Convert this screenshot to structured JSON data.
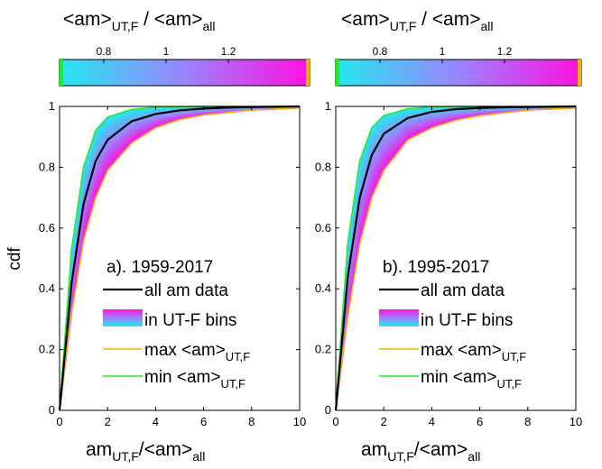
{
  "figure": {
    "cdf_label": "cdf",
    "colorbar_label_main": "<am>",
    "colorbar_label_sub": "UT,F",
    "colorbar_label_mid": " / <am>",
    "colorbar_label_sub2": "all",
    "colorbar_ticks": [
      "0.8",
      "1",
      "1.2"
    ],
    "xlabel_main": "am",
    "xlabel_sub": "UT,F",
    "xlabel_mid": "/<am>",
    "xlabel_sub2": "all"
  },
  "legend": {
    "all": "all am data",
    "bins": "in UT-F bins",
    "max_main": "max <am>",
    "max_sub": "UT,F",
    "min_main": "min <am>",
    "min_sub": "UT,F"
  },
  "colors": {
    "all": "#000000",
    "max": "#f7b500",
    "min": "#22ee22",
    "bins_low": "#22e8f0",
    "bins_mid": "#9a84ff",
    "bins_high": "#ff10e0"
  },
  "chart_data": [
    {
      "type": "line",
      "panel_label": "a). 1959-2017",
      "xlim": [
        0,
        10
      ],
      "ylim": [
        0,
        1
      ],
      "xticks": [
        "0",
        "2",
        "4",
        "6",
        "8",
        "10"
      ],
      "yticks": [
        "0",
        "0.2",
        "0.4",
        "0.6",
        "0.8",
        "1"
      ],
      "series": [
        {
          "name": "all am data",
          "x": [
            0,
            0.5,
            1,
            1.5,
            2,
            3,
            4,
            5,
            6,
            7,
            8,
            10
          ],
          "y": [
            0,
            0.42,
            0.68,
            0.82,
            0.89,
            0.951,
            0.975,
            0.987,
            0.993,
            0.996,
            0.998,
            1.0
          ]
        },
        {
          "name": "max <am>UT,F",
          "x": [
            0,
            0.5,
            1,
            1.5,
            2,
            3,
            4,
            5,
            6,
            8,
            10
          ],
          "y": [
            0,
            0.32,
            0.56,
            0.7,
            0.79,
            0.88,
            0.93,
            0.957,
            0.972,
            0.988,
            0.995
          ]
        },
        {
          "name": "min <am>UT,F",
          "x": [
            0,
            0.5,
            1,
            1.5,
            2,
            3,
            4,
            5,
            6,
            8,
            10
          ],
          "y": [
            0,
            0.53,
            0.8,
            0.92,
            0.965,
            0.99,
            0.997,
            0.999,
            1.0,
            1.0,
            1.0
          ]
        }
      ]
    },
    {
      "type": "line",
      "panel_label": "b). 1995-2017",
      "xlim": [
        0,
        10
      ],
      "ylim": [
        0,
        1
      ],
      "xticks": [
        "0",
        "2",
        "4",
        "6",
        "8",
        "10"
      ],
      "yticks": [
        "0",
        "0.2",
        "0.4",
        "0.6",
        "0.8",
        "1"
      ],
      "series": [
        {
          "name": "all am data",
          "x": [
            0,
            0.5,
            1,
            1.5,
            2,
            3,
            4,
            5,
            6,
            7,
            8,
            10
          ],
          "y": [
            0,
            0.44,
            0.7,
            0.84,
            0.91,
            0.962,
            0.982,
            0.991,
            0.995,
            0.997,
            0.998,
            1.0
          ]
        },
        {
          "name": "max <am>UT,F",
          "x": [
            0,
            0.5,
            1,
            1.5,
            2,
            3,
            4,
            5,
            6,
            8,
            10
          ],
          "y": [
            0,
            0.31,
            0.55,
            0.7,
            0.79,
            0.89,
            0.93,
            0.955,
            0.97,
            0.988,
            0.995
          ]
        },
        {
          "name": "min <am>UT,F",
          "x": [
            0,
            0.5,
            1,
            1.5,
            2,
            3,
            4,
            5,
            6,
            8,
            10
          ],
          "y": [
            0,
            0.55,
            0.82,
            0.93,
            0.97,
            0.992,
            0.998,
            1.0,
            1.0,
            1.0,
            1.0
          ]
        }
      ]
    }
  ]
}
